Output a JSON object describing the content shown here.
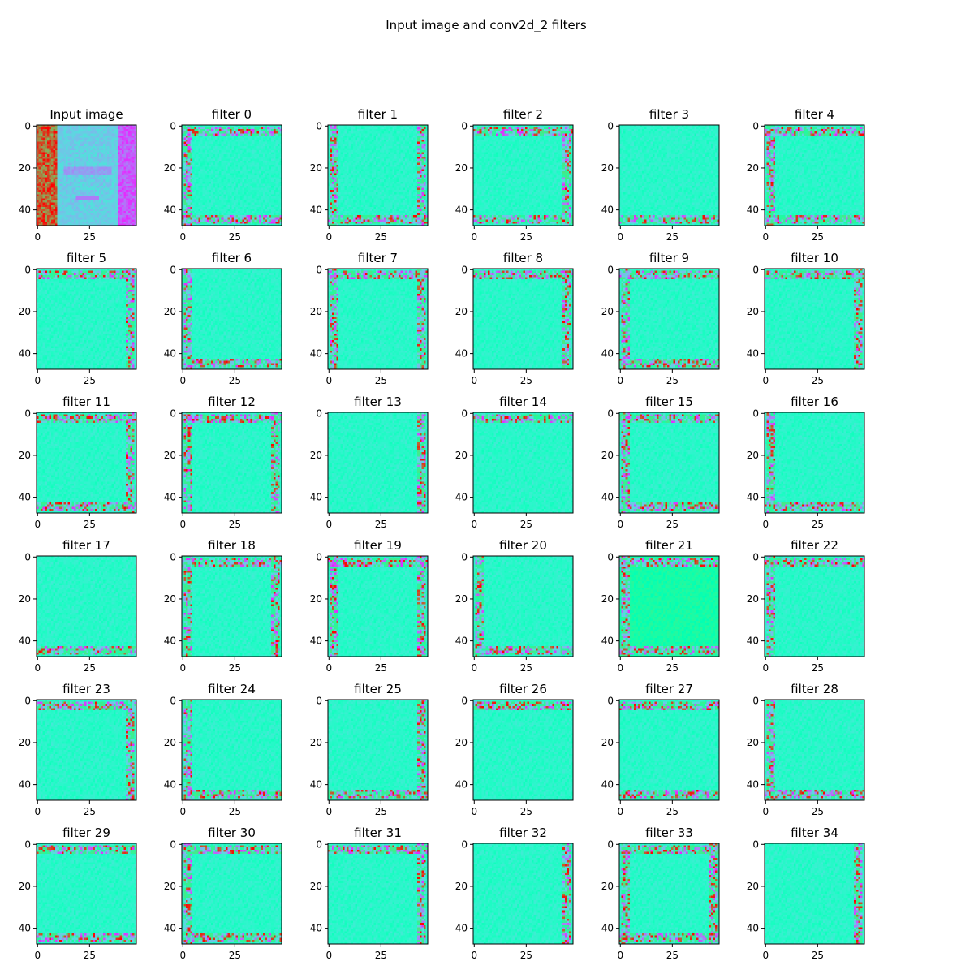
{
  "title": "Input image and conv2d_2 filters",
  "colors": {
    "colormap": "rainbow",
    "background": "#ffffff",
    "axes": "#000000"
  },
  "chart_data": {
    "type": "heatmap",
    "title": "Input image and conv2d_2 filters",
    "grid": false,
    "layout_grid": {
      "rows": 6,
      "cols": 6
    },
    "image_shape": [
      48,
      48
    ],
    "xlim": [
      0,
      47
    ],
    "ylim": [
      47,
      0
    ],
    "xticks": [
      0,
      25
    ],
    "yticks": [
      0,
      20,
      40
    ],
    "colormap": "rainbow",
    "panels": [
      {
        "title": "Input image",
        "kind": "input"
      },
      {
        "title": "filter 0",
        "border": [
          "left",
          "top",
          "bottom"
        ]
      },
      {
        "title": "filter 1",
        "border": [
          "left",
          "right",
          "bottom"
        ]
      },
      {
        "title": "filter 2",
        "border": [
          "top",
          "right",
          "bottom"
        ]
      },
      {
        "title": "filter 3",
        "border": [
          "bottom"
        ]
      },
      {
        "title": "filter 4",
        "border": [
          "top",
          "left",
          "bottom"
        ]
      },
      {
        "title": "filter 5",
        "border": [
          "top",
          "right"
        ]
      },
      {
        "title": "filter 6",
        "border": [
          "left",
          "bottom"
        ]
      },
      {
        "title": "filter 7",
        "border": [
          "top",
          "right",
          "left"
        ]
      },
      {
        "title": "filter 8",
        "border": [
          "right",
          "top"
        ]
      },
      {
        "title": "filter 9",
        "border": [
          "left",
          "bottom",
          "top"
        ]
      },
      {
        "title": "filter 10",
        "border": [
          "top",
          "right"
        ]
      },
      {
        "title": "filter 11",
        "border": [
          "top",
          "bottom",
          "right"
        ]
      },
      {
        "title": "filter 12",
        "border": [
          "top",
          "right",
          "left"
        ]
      },
      {
        "title": "filter 13",
        "border": [
          "right"
        ]
      },
      {
        "title": "filter 14",
        "border": [
          "top"
        ]
      },
      {
        "title": "filter 15",
        "border": [
          "top",
          "bottom",
          "left"
        ]
      },
      {
        "title": "filter 16",
        "border": [
          "bottom",
          "left"
        ]
      },
      {
        "title": "filter 17",
        "border": [
          "bottom"
        ]
      },
      {
        "title": "filter 18",
        "border": [
          "top",
          "right",
          "left"
        ]
      },
      {
        "title": "filter 19",
        "border": [
          "top",
          "left",
          "right"
        ]
      },
      {
        "title": "filter 20",
        "border": [
          "left",
          "bottom"
        ]
      },
      {
        "title": "filter 21",
        "border": [
          "top",
          "left",
          "bottom"
        ]
      },
      {
        "title": "filter 22",
        "border": [
          "top",
          "left"
        ]
      },
      {
        "title": "filter 23",
        "border": [
          "right",
          "top"
        ]
      },
      {
        "title": "filter 24",
        "border": [
          "left",
          "bottom"
        ]
      },
      {
        "title": "filter 25",
        "border": [
          "bottom",
          "right"
        ]
      },
      {
        "title": "filter 26",
        "border": [
          "top"
        ]
      },
      {
        "title": "filter 27",
        "border": [
          "bottom",
          "top"
        ]
      },
      {
        "title": "filter 28",
        "border": [
          "left",
          "bottom"
        ]
      },
      {
        "title": "filter 29",
        "border": [
          "top",
          "bottom"
        ]
      },
      {
        "title": "filter 30",
        "border": [
          "left",
          "top",
          "bottom"
        ]
      },
      {
        "title": "filter 31",
        "border": [
          "top",
          "right"
        ]
      },
      {
        "title": "filter 32",
        "border": [
          "right"
        ]
      },
      {
        "title": "filter 33",
        "border": [
          "top",
          "bottom",
          "left",
          "right"
        ]
      },
      {
        "title": "filter 34",
        "border": [
          "right"
        ]
      }
    ]
  }
}
